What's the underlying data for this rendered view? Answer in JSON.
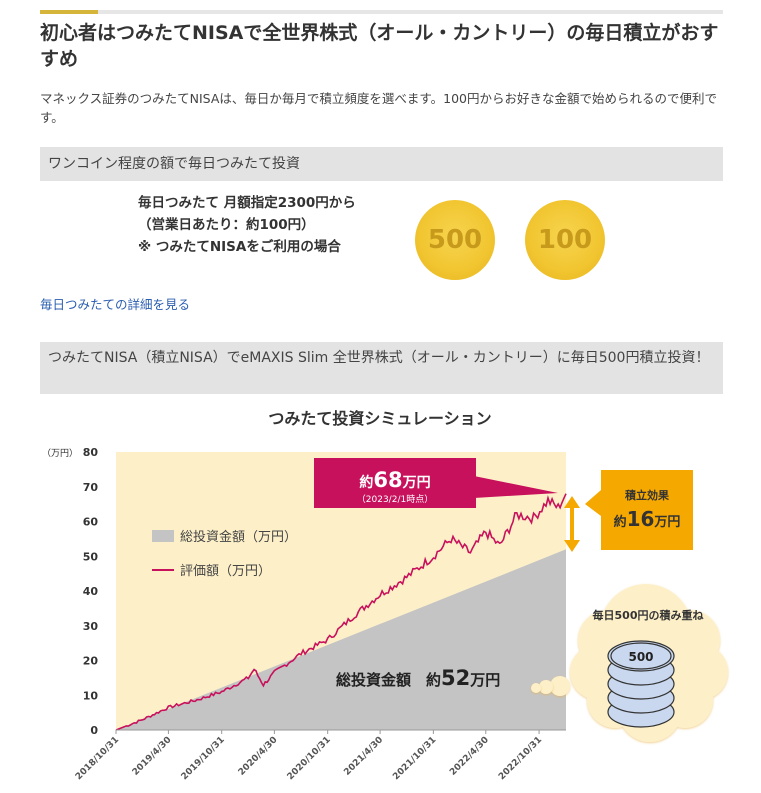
{
  "heading": "初心者はつみたてNISAで全世界株式（オール・カントリー）の毎日積立がおすすめ",
  "intro": "マネックス証券のつみたてNISAは、毎日か毎月で積立頻度を選べます。100円からお好きな金額で始められるので便利です。",
  "section1": {
    "band": "ワンコイン程度の額で毎日つみたて投資",
    "plan_line1": "毎日つみたて 月額指定2300円から",
    "plan_line2": "（営業日あたり：約100円）",
    "plan_line3": "※ つみたてNISAをご利用の場合",
    "coin_left": "500",
    "coin_right": "100",
    "link": "毎日つみたての詳細を見る"
  },
  "section2": {
    "band": "つみたてNISA（積立NISA）でeMAXIS Slim 全世界株式（オール・カントリー）に毎日500円積立投資！"
  },
  "colors": {
    "accent_bar": "#d6b63a",
    "band_bg": "#e3e3e3",
    "plot_bg": "#fdf0c9",
    "invest_fill": "#c4c4c4",
    "value_line": "#c8115c",
    "callout_magenta": "#c8115c",
    "callout_orange": "#f5a800",
    "link": "#2a5db0"
  },
  "chart_data": {
    "type": "area",
    "title": "つみたて投資シミュレーション",
    "ylabel": "（万円）",
    "ylim": [
      0,
      80
    ],
    "yticks": [
      0,
      10,
      20,
      30,
      40,
      50,
      60,
      70,
      80
    ],
    "xlim": [
      "2018-10-31",
      "2023-02-01"
    ],
    "xticks": [
      "2018/10/31",
      "2019/4/30",
      "2019/10/31",
      "2020/4/30",
      "2020/10/31",
      "2021/4/30",
      "2021/10/31",
      "2022/4/30",
      "2022/10/31"
    ],
    "grid": false,
    "legend_position": "left",
    "series": [
      {
        "name": "総投資金額（万円）",
        "kind": "area",
        "x": [
          "2018-10-31",
          "2023-02-01"
        ],
        "y": [
          0,
          52
        ]
      },
      {
        "name": "評価額（万円）",
        "kind": "line",
        "x": [
          "2018-10-31",
          "2019-01-31",
          "2019-04-30",
          "2019-07-31",
          "2019-10-31",
          "2020-01-31",
          "2020-02-20",
          "2020-03-23",
          "2020-04-30",
          "2020-07-31",
          "2020-10-31",
          "2021-01-31",
          "2021-04-30",
          "2021-07-31",
          "2021-10-31",
          "2021-12-31",
          "2022-03-08",
          "2022-04-30",
          "2022-06-17",
          "2022-08-15",
          "2022-10-12",
          "2022-12-01",
          "2023-01-05",
          "2023-02-01"
        ],
        "y": [
          0,
          3,
          6.5,
          8.5,
          11,
          15,
          17.5,
          13,
          16.5,
          22,
          26,
          33,
          39,
          44,
          50,
          55,
          51,
          57,
          53,
          62,
          61,
          66,
          64,
          68
        ]
      }
    ],
    "annotations": {
      "final_value_label": "約",
      "final_value_number": "68",
      "final_value_unit": "万円",
      "final_value_date": "（2023/2/1時点）",
      "effect_title": "積立効果",
      "effect_prefix": "約",
      "effect_number": "16",
      "effect_unit": "万円",
      "invest_label": "総投資金額",
      "invest_prefix": "約",
      "invest_number": "52",
      "invest_unit": "万円",
      "cloud_text": "毎日500円の積み重ね",
      "coin_stack_label": "500"
    }
  }
}
